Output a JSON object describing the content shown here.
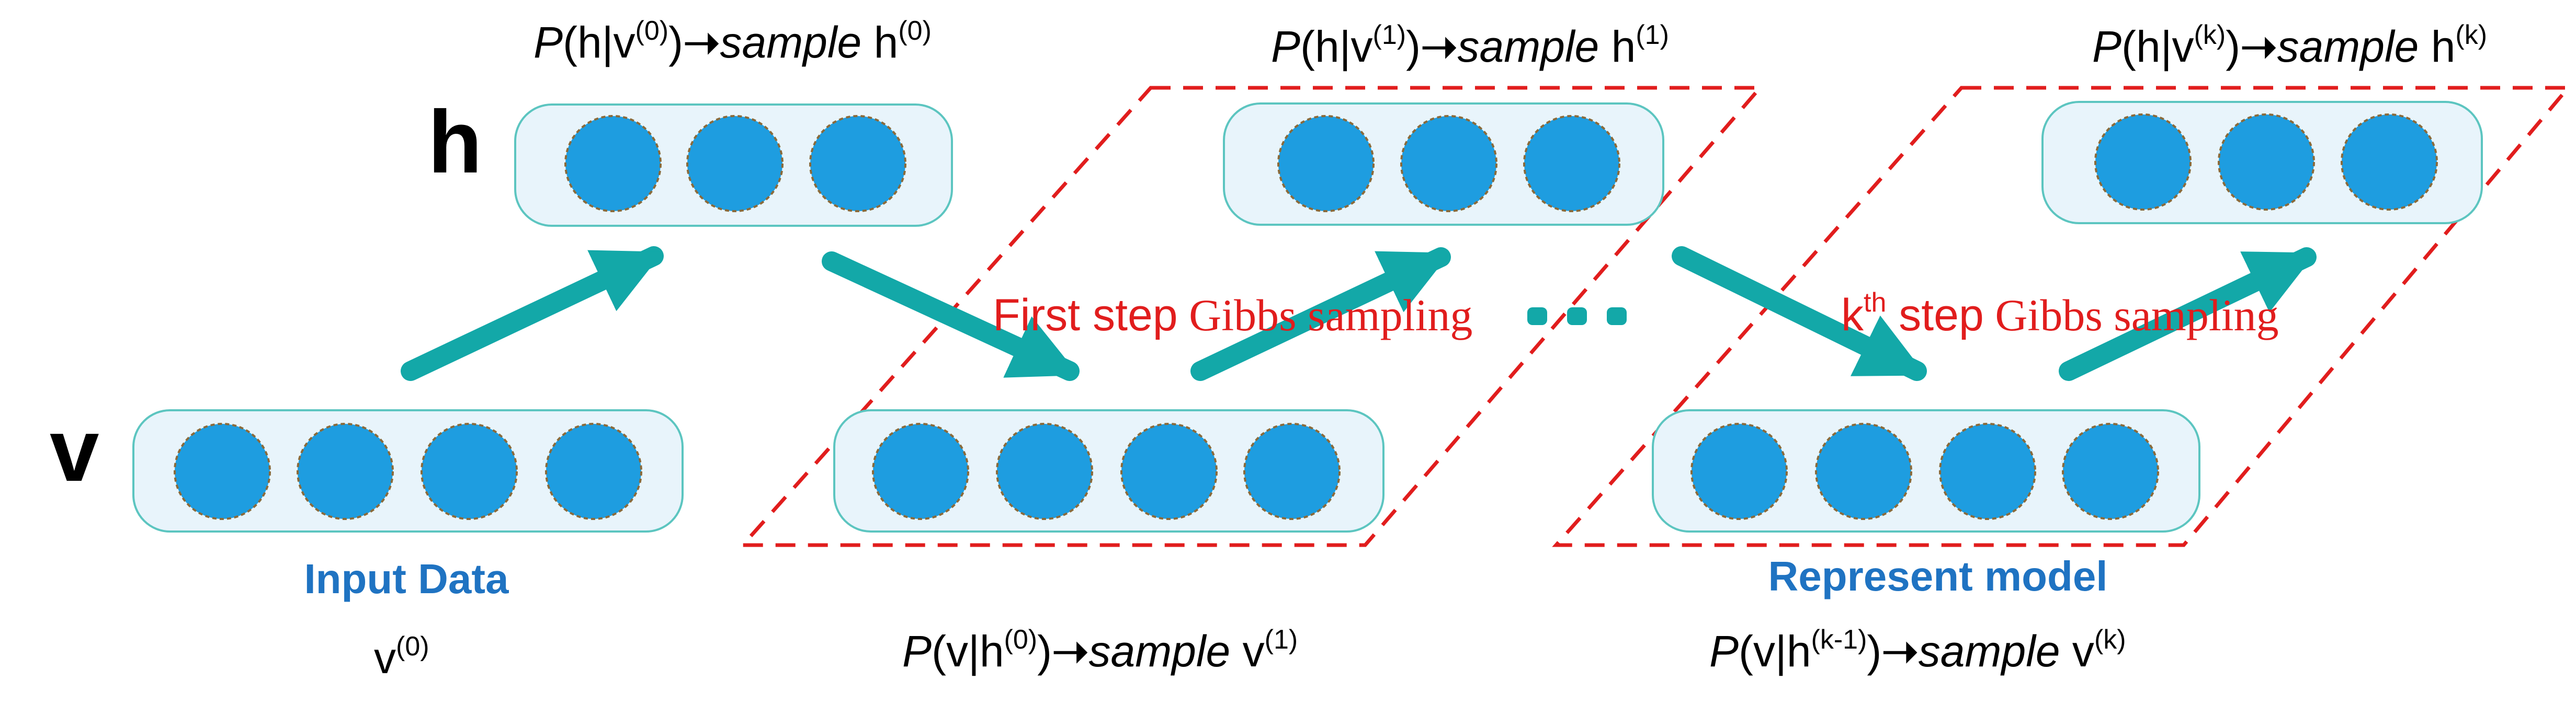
{
  "layers": {
    "h_label": "h",
    "v_label": "v"
  },
  "captions": {
    "input_data": "Input Data",
    "represent_model": "Represent model",
    "ellipsis": "..."
  },
  "formulas": {
    "top": [
      {
        "P": "P",
        "open": "(h|v",
        "sup": "(0)",
        "close": ")",
        "arrow": "➝",
        "sample": "sample",
        "var": " h",
        "var_sup": "(0)"
      },
      {
        "P": "P",
        "open": "(h|v",
        "sup": "(1)",
        "close": ")",
        "arrow": "➝",
        "sample": "sample",
        "var": " h",
        "var_sup": "(1)"
      },
      {
        "P": "P",
        "open": "(h|v",
        "sup": "(k)",
        "close": ")",
        "arrow": "➝",
        "sample": "sample",
        "var": " h",
        "var_sup": "(k)"
      }
    ],
    "v0": {
      "var": "v",
      "sup": "(0)"
    },
    "bottom": [
      {
        "P": "P",
        "open": "(v|h",
        "sup": "(0)",
        "close": ")",
        "arrow": "➝",
        "sample": "sample",
        "var": " v",
        "var_sup": "(1)"
      },
      {
        "P": "P",
        "open": "(v|h",
        "sup": "(k-1)",
        "close": ")",
        "arrow": "➝",
        "sample": "sample",
        "var": " v",
        "var_sup": "(k)"
      }
    ]
  },
  "steps": {
    "first": {
      "prefix": "First step",
      "suffix": " Gibbs sampling"
    },
    "kth": {
      "k": "k",
      "sup": "th",
      "prefix": " step",
      "suffix": " Gibbs sampling"
    }
  },
  "colors": {
    "node_fill": "#1e9de0",
    "node_border": "#8a6a3a",
    "layer_fill": "#e8f4fb",
    "layer_stroke": "#5cc5c0",
    "arrow": "#13a8a8",
    "dash": "#e11d1d",
    "caption_blue": "#1f73c2",
    "step_red": "#e11d1d"
  }
}
